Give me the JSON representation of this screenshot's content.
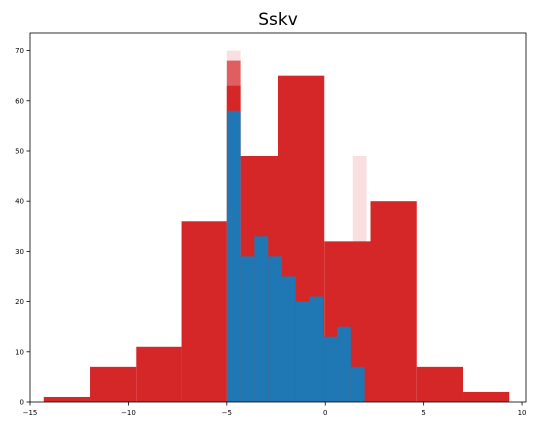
{
  "chart_data": {
    "type": "bar",
    "title": "Sskv",
    "xlabel": "",
    "ylabel": "",
    "xlim": [
      -15.0,
      10.2
    ],
    "ylim": [
      0,
      73.5
    ],
    "grid": false,
    "x_ticks": [
      -15,
      -10,
      -5,
      0,
      5,
      10
    ],
    "x_tick_labels": [
      "−15",
      "−10",
      "−5",
      "0",
      "5",
      "10"
    ],
    "y_ticks": [
      0,
      10,
      20,
      30,
      40,
      50,
      60,
      70
    ],
    "y_tick_labels": [
      "0",
      "10",
      "20",
      "30",
      "40",
      "50",
      "60",
      "70"
    ],
    "series": [
      {
        "color": "#d62728",
        "opacity": 0.15,
        "bins": [
          {
            "x0": -5.0,
            "x1": -4.3,
            "value": 70
          },
          {
            "x0": 1.4,
            "x1": 2.1,
            "value": 49
          }
        ]
      },
      {
        "color": "#d62728",
        "opacity": 0.7,
        "bins": [
          {
            "x0": -5.0,
            "x1": -4.3,
            "value": 68
          }
        ]
      },
      {
        "color": "#d62728",
        "opacity": 1.0,
        "bins": [
          {
            "x0": -14.3,
            "x1": -11.95,
            "value": 1
          },
          {
            "x0": -11.95,
            "x1": -9.6,
            "value": 7
          },
          {
            "x0": -9.6,
            "x1": -7.3,
            "value": 11
          },
          {
            "x0": -7.3,
            "x1": -5.0,
            "value": 36
          },
          {
            "x0": -5.0,
            "x1": -4.3,
            "value": 63
          },
          {
            "x0": -4.3,
            "x1": -2.4,
            "value": 49
          },
          {
            "x0": -2.4,
            "x1": -0.05,
            "value": 65
          },
          {
            "x0": -0.05,
            "x1": 2.3,
            "value": 32
          },
          {
            "x0": 2.3,
            "x1": 4.65,
            "value": 40
          },
          {
            "x0": 4.65,
            "x1": 7.0,
            "value": 7
          },
          {
            "x0": 7.0,
            "x1": 9.35,
            "value": 2
          }
        ]
      },
      {
        "color": "#1f77b4",
        "opacity": 1.0,
        "bins": [
          {
            "x0": -5.0,
            "x1": -4.3,
            "value": 58
          },
          {
            "x0": -4.3,
            "x1": -3.6,
            "value": 29
          },
          {
            "x0": -3.6,
            "x1": -2.9,
            "value": 33
          },
          {
            "x0": -2.9,
            "x1": -2.2,
            "value": 29
          },
          {
            "x0": -2.2,
            "x1": -1.5,
            "value": 25
          },
          {
            "x0": -1.5,
            "x1": -0.8,
            "value": 20
          },
          {
            "x0": -0.8,
            "x1": -0.1,
            "value": 21
          },
          {
            "x0": -0.1,
            "x1": 0.6,
            "value": 13
          },
          {
            "x0": 0.6,
            "x1": 1.3,
            "value": 15
          },
          {
            "x0": 1.3,
            "x1": 2.0,
            "value": 7
          }
        ]
      }
    ]
  }
}
